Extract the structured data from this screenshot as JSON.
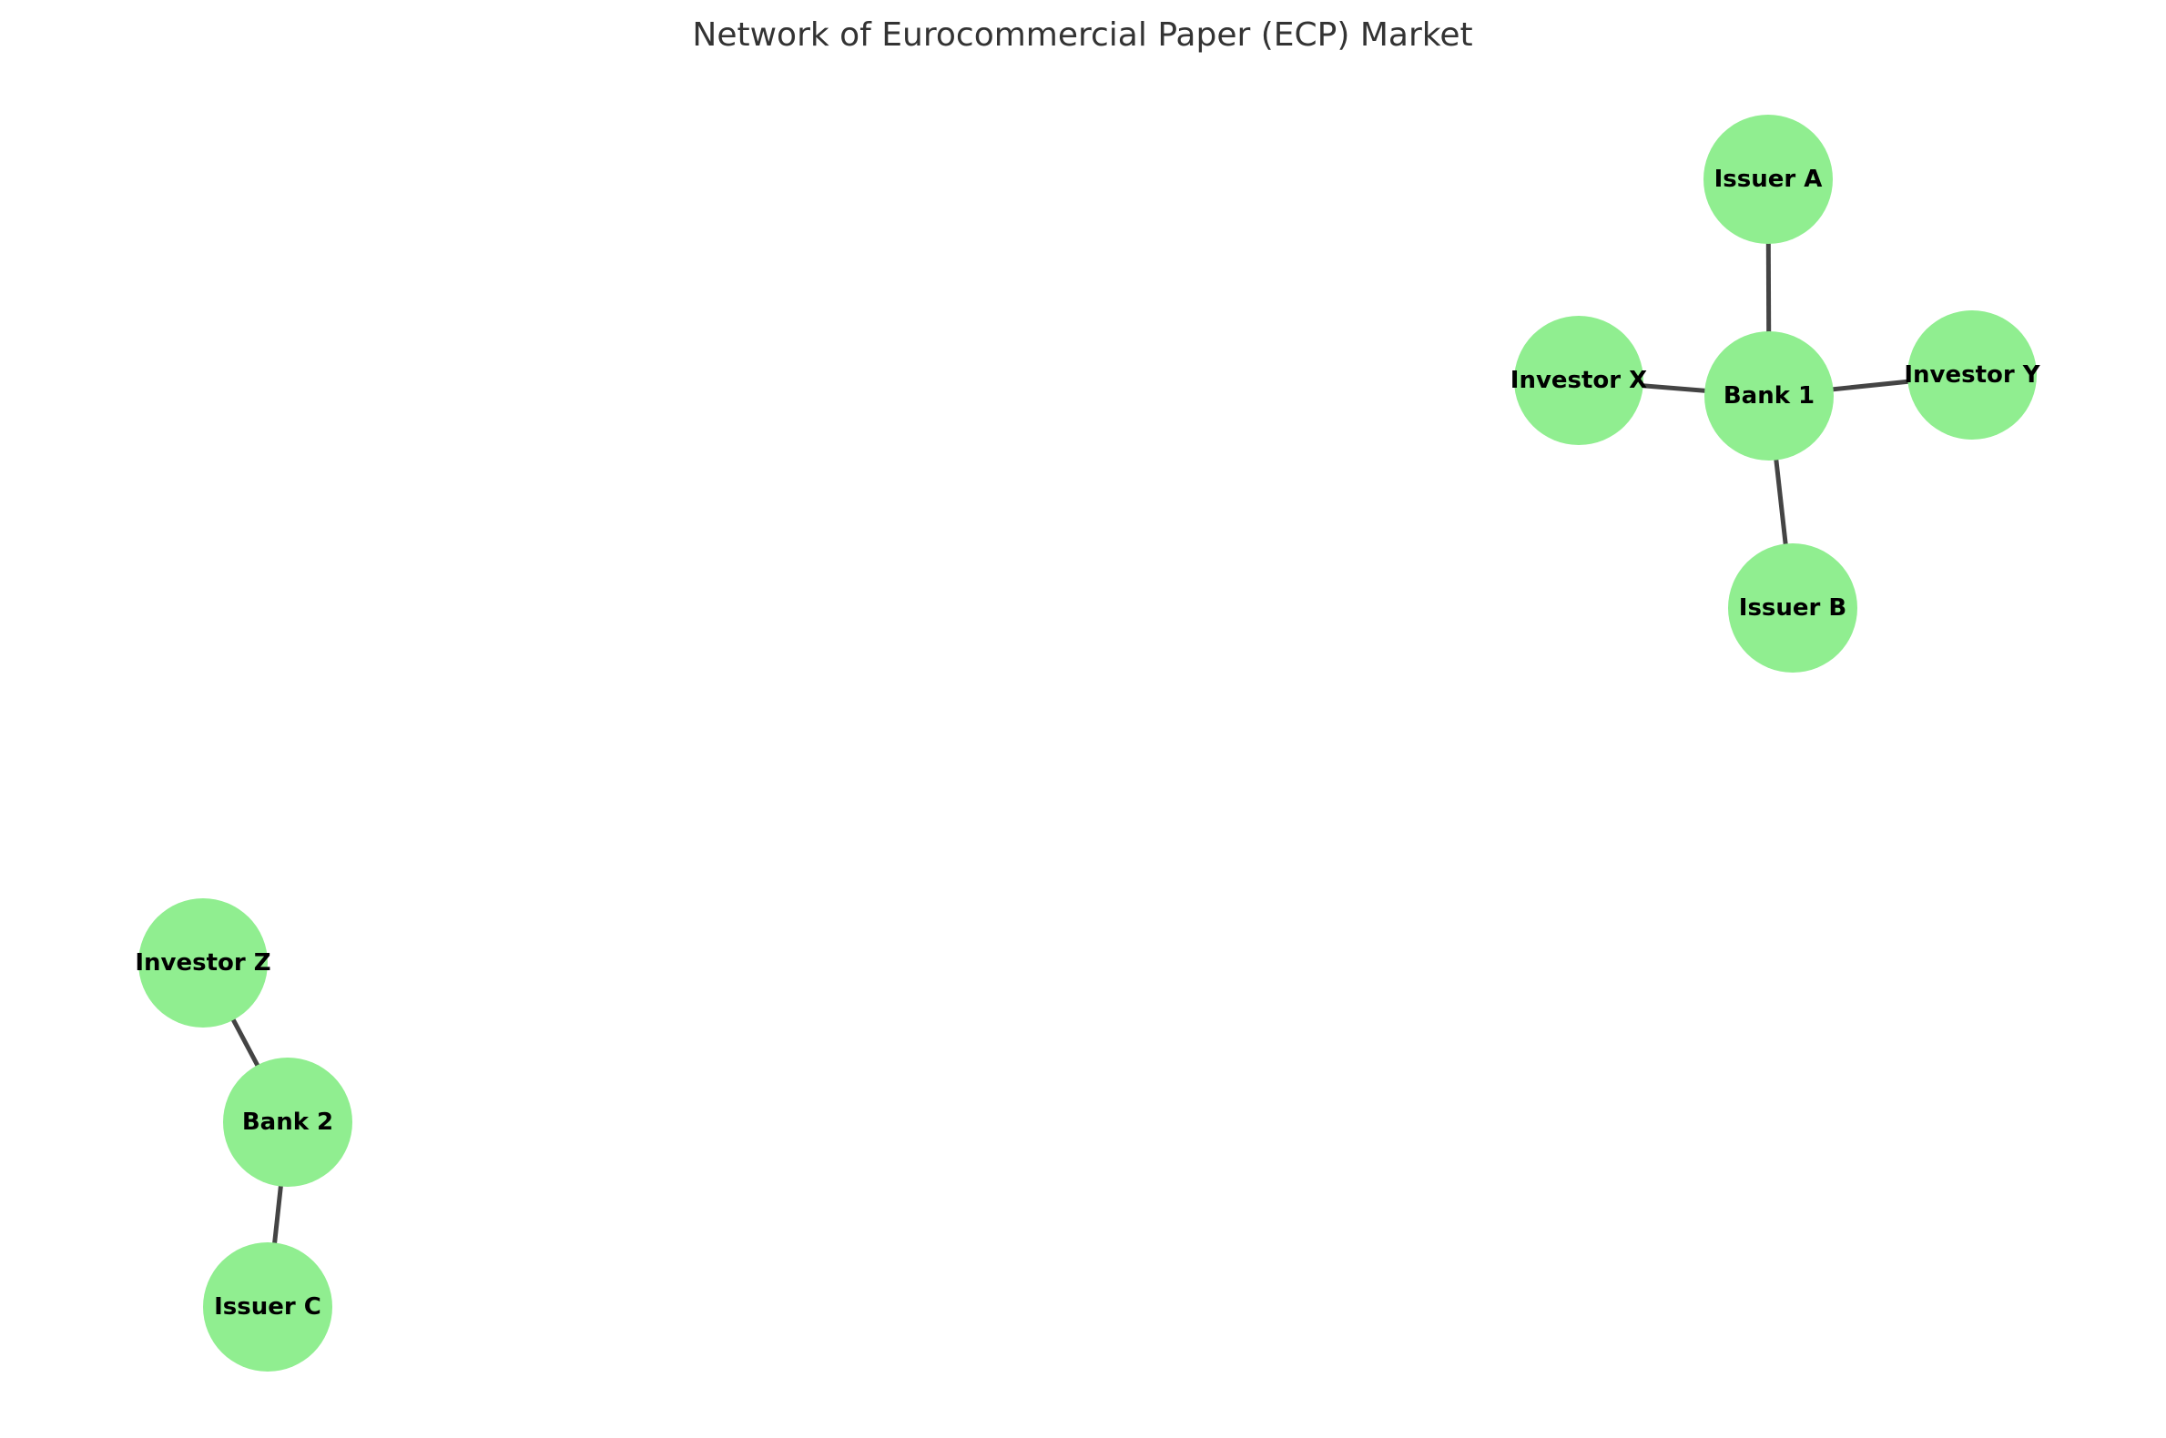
{
  "title": "Network of Eurocommercial Paper (ECP) Market",
  "colors": {
    "node_fill": "#90ee90",
    "edge": "#444444",
    "label": "#000000",
    "title": "#333333"
  },
  "nodes": [
    {
      "id": "issuer-a",
      "label": "Issuer A"
    },
    {
      "id": "investor-x",
      "label": "Investor X"
    },
    {
      "id": "bank-1",
      "label": "Bank 1"
    },
    {
      "id": "investor-y",
      "label": "Investor Y"
    },
    {
      "id": "issuer-b",
      "label": "Issuer B"
    },
    {
      "id": "investor-z",
      "label": "Investor Z"
    },
    {
      "id": "bank-2",
      "label": "Bank 2"
    },
    {
      "id": "issuer-c",
      "label": "Issuer C"
    }
  ],
  "edges": [
    {
      "from": "issuer-a",
      "to": "bank-1"
    },
    {
      "from": "investor-x",
      "to": "bank-1"
    },
    {
      "from": "investor-y",
      "to": "bank-1"
    },
    {
      "from": "issuer-b",
      "to": "bank-1"
    },
    {
      "from": "investor-z",
      "to": "bank-2"
    },
    {
      "from": "issuer-c",
      "to": "bank-2"
    }
  ]
}
